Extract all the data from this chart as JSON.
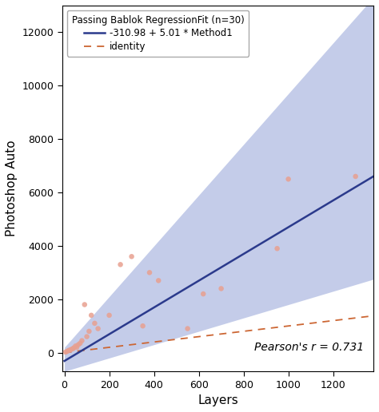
{
  "title": "Passing Bablok RegressionFit (n=30)",
  "xlabel": "Layers",
  "ylabel": "Photoshop Auto",
  "pearson_text": "Pearson's r = 0.731",
  "intercept": -310.98,
  "slope": 5.01,
  "xlim": [
    -10,
    1380
  ],
  "ylim": [
    -700,
    13000
  ],
  "xticks": [
    0,
    200,
    400,
    600,
    800,
    1000,
    1200
  ],
  "yticks": [
    0,
    2000,
    4000,
    6000,
    8000,
    10000,
    12000
  ],
  "regression_color": "#2b3a8c",
  "ci_color": "#8a9bd4",
  "ci_alpha": 0.5,
  "identity_color": "#cc6633",
  "scatter_color": "#e8a090",
  "scatter_alpha": 0.85,
  "scatter_size": 22,
  "background_color": "#ffffff",
  "points_x": [
    5,
    12,
    18,
    25,
    30,
    38,
    42,
    50,
    55,
    62,
    70,
    78,
    90,
    100,
    110,
    120,
    135,
    150,
    200,
    250,
    300,
    350,
    380,
    420,
    550,
    620,
    700,
    950,
    1000,
    1300
  ],
  "points_y": [
    20,
    50,
    80,
    100,
    120,
    150,
    180,
    250,
    200,
    300,
    350,
    450,
    1800,
    600,
    800,
    1400,
    1100,
    900,
    1400,
    3300,
    3600,
    1000,
    3000,
    2700,
    900,
    2200,
    2400,
    3900,
    6500,
    6600
  ],
  "ci_upper_slope": 9.5,
  "ci_upper_intercept": 200,
  "ci_lower_slope": 2.5,
  "ci_lower_intercept": -700,
  "identity_slope": 1.0,
  "identity_intercept": 0,
  "legend_title_fontsize": 8.5,
  "legend_fontsize": 8.5,
  "axis_fontsize": 11,
  "tick_fontsize": 9,
  "pearson_fontsize": 10
}
